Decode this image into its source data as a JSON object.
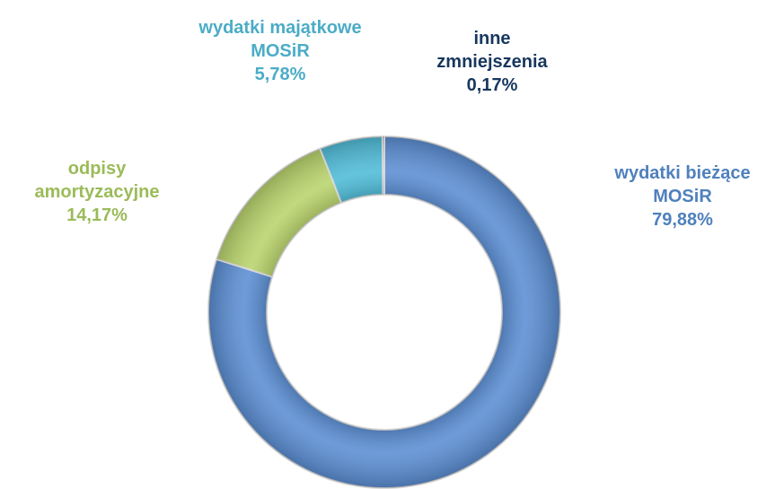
{
  "chart_data": {
    "type": "donut",
    "categories": [
      "wydatki bieżące MOSiR",
      "odpisy amortyzacyjne",
      "wydatki majątkowe MOSiR",
      "inne zmniejszenia"
    ],
    "values": [
      79.88,
      14.17,
      5.78,
      0.17
    ],
    "value_labels": [
      "79,88%",
      "14,17%",
      "5,78%",
      "0,17%"
    ],
    "colors": [
      "#5b8ed3",
      "#b9d46c",
      "#4fbcd8",
      "#1f3864"
    ],
    "label_colors": [
      "#4f81bd",
      "#9bbb59",
      "#4bacc6",
      "#17375e"
    ]
  }
}
